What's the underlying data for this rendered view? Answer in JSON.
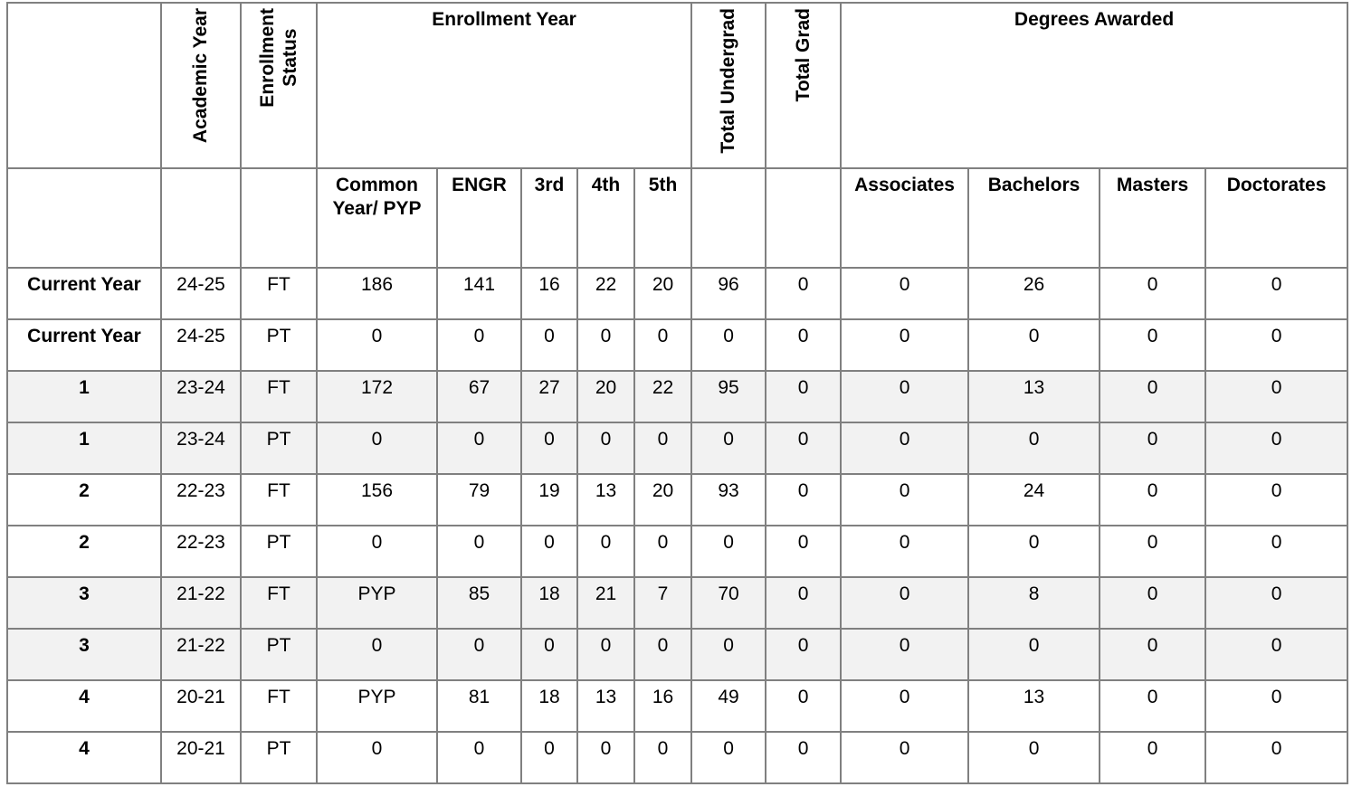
{
  "table": {
    "group_headers": {
      "academic_year": "Academic Year",
      "enrollment_status": "Enrollment\nStatus",
      "enrollment_year": "Enrollment Year",
      "total_undergrad": "Total Undergrad",
      "total_grad": "Total Grad",
      "degrees_awarded": "Degrees Awarded"
    },
    "sub_headers": {
      "common_year": "Common\nYear/ PYP",
      "engr": "ENGR",
      "third": "3rd",
      "fourth": "4th",
      "fifth": "5th",
      "associates": "Associates",
      "bachelors": "Bachelors",
      "masters": "Masters",
      "doctorates": "Doctorates"
    },
    "rows": [
      {
        "label": "Current Year",
        "year": "24-25",
        "status": "FT",
        "values": [
          "186",
          "141",
          "16",
          "22",
          "20",
          "96",
          "0",
          "0",
          "26",
          "0",
          "0"
        ],
        "shaded": false
      },
      {
        "label": "Current Year",
        "year": "24-25",
        "status": "PT",
        "values": [
          "0",
          "0",
          "0",
          "0",
          "0",
          "0",
          "0",
          "0",
          "0",
          "0",
          "0"
        ],
        "shaded": false
      },
      {
        "label": "1",
        "year": "23-24",
        "status": "FT",
        "values": [
          "172",
          "67",
          "27",
          "20",
          "22",
          "95",
          "0",
          "0",
          "13",
          "0",
          "0"
        ],
        "shaded": true
      },
      {
        "label": "1",
        "year": "23-24",
        "status": "PT",
        "values": [
          "0",
          "0",
          "0",
          "0",
          "0",
          "0",
          "0",
          "0",
          "0",
          "0",
          "0"
        ],
        "shaded": true
      },
      {
        "label": "2",
        "year": "22-23",
        "status": "FT",
        "values": [
          "156",
          "79",
          "19",
          "13",
          "20",
          "93",
          "0",
          "0",
          "24",
          "0",
          "0"
        ],
        "shaded": false
      },
      {
        "label": "2",
        "year": "22-23",
        "status": "PT",
        "values": [
          "0",
          "0",
          "0",
          "0",
          "0",
          "0",
          "0",
          "0",
          "0",
          "0",
          "0"
        ],
        "shaded": false
      },
      {
        "label": "3",
        "year": "21-22",
        "status": "FT",
        "values": [
          "PYP",
          "85",
          "18",
          "21",
          "7",
          "70",
          "0",
          "0",
          "8",
          "0",
          "0"
        ],
        "shaded": true
      },
      {
        "label": "3",
        "year": "21-22",
        "status": "PT",
        "values": [
          "0",
          "0",
          "0",
          "0",
          "0",
          "0",
          "0",
          "0",
          "0",
          "0",
          "0"
        ],
        "shaded": true
      },
      {
        "label": "4",
        "year": "20-21",
        "status": "FT",
        "values": [
          "PYP",
          "81",
          "18",
          "13",
          "16",
          "49",
          "0",
          "0",
          "13",
          "0",
          "0"
        ],
        "shaded": false
      },
      {
        "label": "4",
        "year": "20-21",
        "status": "PT",
        "values": [
          "0",
          "0",
          "0",
          "0",
          "0",
          "0",
          "0",
          "0",
          "0",
          "0",
          "0"
        ],
        "shaded": false
      }
    ],
    "colors": {
      "header_gray": "#bfbfbf",
      "band_gray": "#f2f2f2",
      "border_gray": "#808080"
    }
  }
}
